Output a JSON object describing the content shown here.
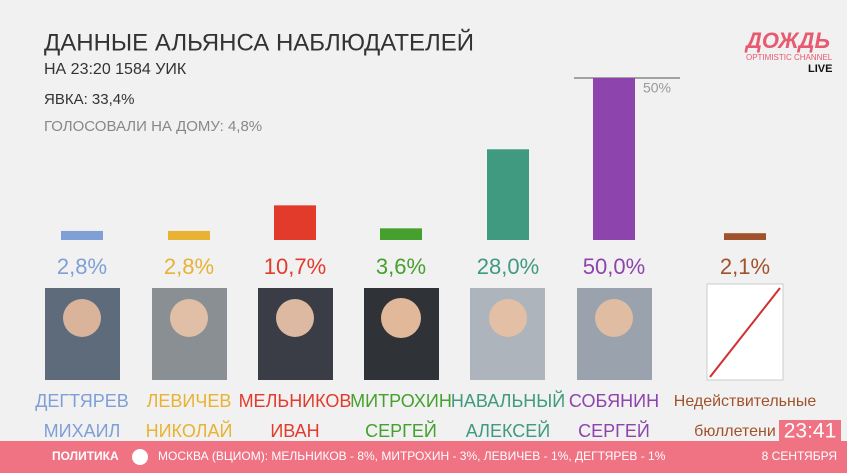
{
  "chart_data": {
    "type": "bar",
    "title": "ДАННЫЕ АЛЬЯНСА НАБЛЮДАТЕЛЕЙ",
    "subtitle": "НА 23:20  1584 УИК",
    "annotations": [
      "ЯВКА: 33,4%",
      "ГОЛОСОВАЛИ НА ДОМУ: 4,8%"
    ],
    "categories": [
      [
        "ДЕГТЯРЕВ",
        "МИХАИЛ"
      ],
      [
        "ЛЕВИЧЕВ",
        "НИКОЛАЙ"
      ],
      [
        "МЕЛЬНИКОВ",
        "ИВАН"
      ],
      [
        "МИТРОХИН",
        "СЕРГЕЙ"
      ],
      [
        "НАВАЛЬНЫЙ",
        "АЛЕКСЕЙ"
      ],
      [
        "СОБЯНИН",
        "СЕРГЕЙ"
      ],
      [
        "Недействительные",
        "бюллетени"
      ]
    ],
    "values": [
      2.8,
      2.8,
      10.7,
      3.6,
      28.0,
      50.0,
      2.1
    ],
    "value_labels": [
      "2,8%",
      "2,8%",
      "10,7%",
      "3,6%",
      "28,0%",
      "50,0%",
      "2,1%"
    ],
    "colors": [
      "#7f9fd6",
      "#e8b234",
      "#e23b2c",
      "#45a02e",
      "#3f9a80",
      "#8e44ad",
      "#a0522d"
    ],
    "reference_line": {
      "value": 50,
      "label": "50%"
    }
  },
  "broadcast": {
    "logo": "ДОЖДЬ",
    "logo_sub": "OPTIMISTIC CHANNEL",
    "live": "LIVE",
    "clock": "23:41",
    "ticker_section": "ПОЛИТИКА",
    "ticker_text": "МОСКВА (ВЦИОМ): МЕЛЬНИКОВ - 8%, МИТРОХИН - 3%, ЛЕВИЧЕВ - 1%, ДЕГТЯРЕВ - 1%",
    "date": "8 СЕНТЯБРЯ"
  }
}
